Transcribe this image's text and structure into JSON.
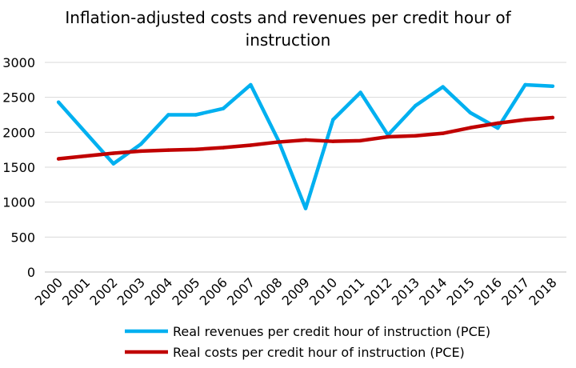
{
  "chart_data": {
    "type": "line",
    "title_line1": "Inflation-adjusted costs and revenues per credit hour of",
    "title_line2": "instruction",
    "categories": [
      "2000",
      "2001",
      "2002",
      "2003",
      "2004",
      "2005",
      "2006",
      "2007",
      "2008",
      "2009",
      "2010",
      "2011",
      "2012",
      "2013",
      "2014",
      "2015",
      "2016",
      "2017",
      "2018"
    ],
    "ylim": [
      0,
      3000
    ],
    "yticks": [
      0,
      500,
      1000,
      1500,
      2000,
      2500,
      3000
    ],
    "grid": true,
    "legend_position": "bottom",
    "series": [
      {
        "name": "Real revenues per credit hour of instruction (PCE)",
        "color": "#00B0F0",
        "values": [
          2430,
          1990,
          1550,
          1830,
          2250,
          2250,
          2340,
          2680,
          1890,
          910,
          2180,
          2570,
          1960,
          2380,
          2650,
          2280,
          2060,
          2680,
          2660
        ]
      },
      {
        "name": "Real costs per credit hour of instruction (PCE)",
        "color": "#C00000",
        "values": [
          1620,
          1660,
          1700,
          1730,
          1745,
          1755,
          1780,
          1815,
          1860,
          1890,
          1870,
          1880,
          1935,
          1950,
          1985,
          2065,
          2130,
          2180,
          2210
        ]
      }
    ]
  }
}
